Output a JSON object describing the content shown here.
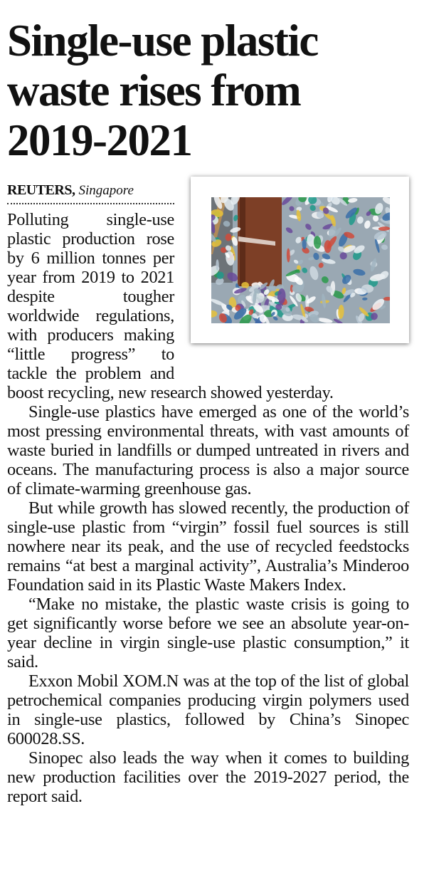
{
  "headline": "Single-use plastic waste rises from 2019-2021",
  "byline": {
    "agency": "REUTERS,",
    "location": "Singapore"
  },
  "image": {
    "subject": "plastic-waste-photo"
  },
  "paragraphs": [
    "Polluting single-use plastic production rose by 6 million tonnes per year from 2019 to 2021 despite tougher worldwide regulations, with producers making “little progress” to tackle the problem and boost recycling, new research showed yesterday.",
    "Single-use plastics have emerged as one of the world’s most pressing environmental threats, with vast amounts of waste buried in landfills or dumped untreated in rivers and oceans. The manufacturing process is also a major source of climate-warming greenhouse gas.",
    "But while growth has slowed recently, the production of single-use plastic from “virgin” fossil fuel sources is still nowhere near its peak, and the use of recycled feedstocks remains “at best a marginal activity”, Australia’s Minderoo Foundation said in its Plastic Waste Makers Index.",
    "“Make no mistake, the plastic waste crisis is going to get significantly worse before we see an absolute year-on-year decline in virgin single-use plastic consumption,” it said.",
    "Exxon Mobil XOM.N was at the top of the list of global petrochemical companies producing virgin polymers used in single-use plastics, followed by China’s Sinopec 600028.SS.",
    "Sinopec also leads the way when it comes to building new production facilities over the 2019-2027 period, the report said."
  ]
}
